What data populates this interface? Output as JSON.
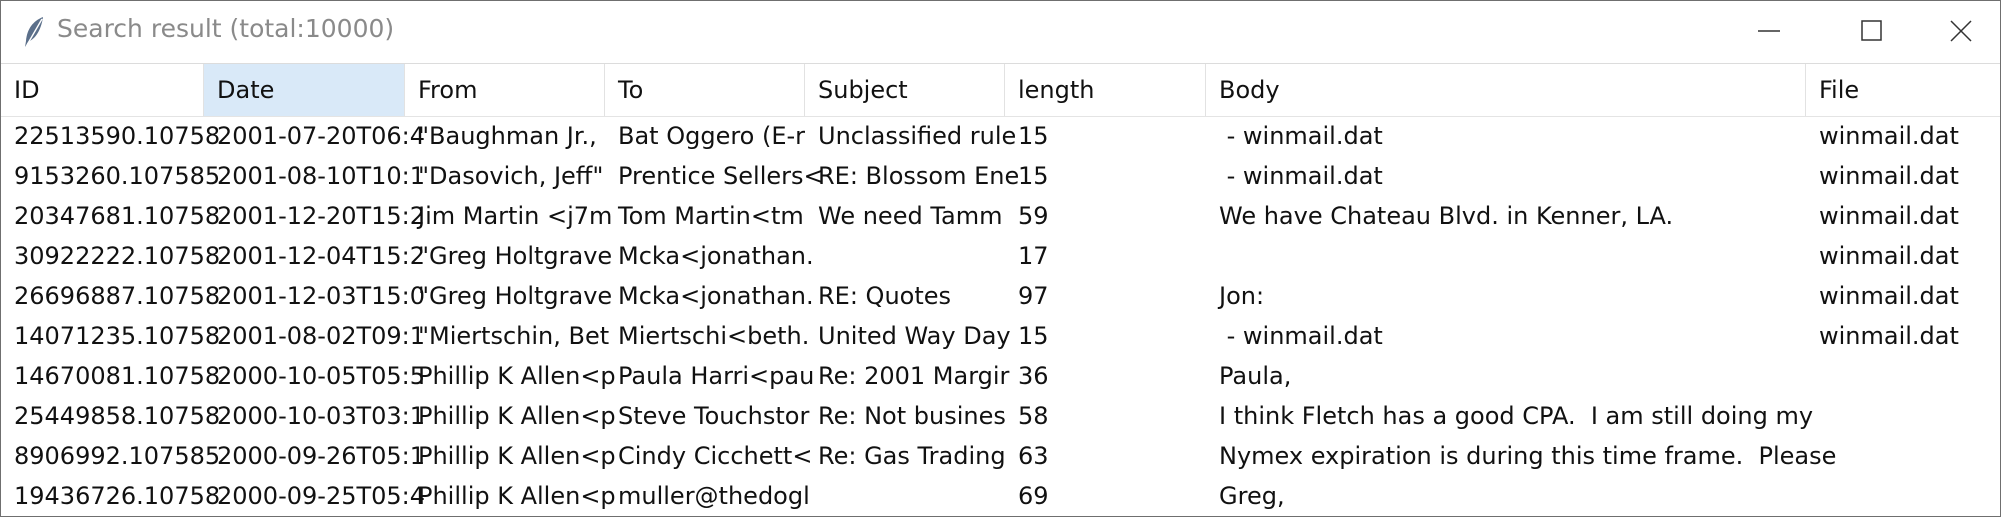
{
  "window": {
    "title": "Search result (total:10000)",
    "icon": "feather-icon",
    "controls": {
      "minimize": "minimize-icon",
      "maximize": "maximize-icon",
      "close": "close-icon"
    }
  },
  "table": {
    "columns": [
      "ID",
      "Date",
      "From",
      "To",
      "Subject",
      "length",
      "Body",
      "File"
    ],
    "sorted_column": "Date",
    "rows": [
      {
        "id": "22513590.10758",
        "date": "2001-07-20T06:4",
        "from": "\"Baughman Jr.,",
        "to": "Bat Oggero (E-r",
        "subject": "Unclassified rule",
        "length": "15",
        "body": " - winmail.dat",
        "file": "winmail.dat"
      },
      {
        "id": "9153260.107585",
        "date": "2001-08-10T10:1",
        "from": "\"Dasovich, Jeff\"",
        "to": "Prentice Sellers<",
        "subject": "RE: Blossom Ene",
        "length": "15",
        "body": " - winmail.dat",
        "file": "winmail.dat"
      },
      {
        "id": "20347681.10758",
        "date": "2001-12-20T15:2",
        "from": "Jim Martin <j7m",
        "to": "Tom Martin<tm",
        "subject": "We need Tamm",
        "length": "59",
        "body": "We have Chateau Blvd. in Kenner, LA.",
        "file": "winmail.dat"
      },
      {
        "id": "30922222.10758",
        "date": "2001-12-04T15:2",
        "from": "\"Greg Holtgrave",
        "to": "Mcka<jonathan.",
        "subject": "",
        "length": "17",
        "body": "",
        "file": "winmail.dat"
      },
      {
        "id": "26696887.10758",
        "date": "2001-12-03T15:0",
        "from": "\"Greg Holtgrave",
        "to": "Mcka<jonathan.",
        "subject": "RE: Quotes",
        "length": "97",
        "body": "Jon:",
        "file": "winmail.dat"
      },
      {
        "id": "14071235.10758",
        "date": "2001-08-02T09:1",
        "from": "\"Miertschin, Bet",
        "to": "Miertschi<beth.",
        "subject": "United Way Day",
        "length": "15",
        "body": " - winmail.dat",
        "file": "winmail.dat"
      },
      {
        "id": "14670081.10758",
        "date": "2000-10-05T05:5",
        "from": "Phillip K Allen<p",
        "to": "Paula Harri<pau",
        "subject": "Re: 2001 Margir",
        "length": "36",
        "body": "Paula,",
        "file": ""
      },
      {
        "id": "25449858.10758",
        "date": "2000-10-03T03:1",
        "from": "Phillip K Allen<p",
        "to": "Steve Touchstor",
        "subject": "Re: Not busines",
        "length": "58",
        "body": "I think Fletch has a good CPA.  I am still doing my",
        "file": ""
      },
      {
        "id": "8906992.107585",
        "date": "2000-09-26T05:1",
        "from": "Phillip K Allen<p",
        "to": "Cindy Cicchett<",
        "subject": "Re: Gas Trading",
        "length": "63",
        "body": "Nymex expiration is during this time frame.  Please",
        "file": ""
      },
      {
        "id": "19436726.10758",
        "date": "2000-09-25T05:4",
        "from": "Phillip K Allen<p",
        "to": "muller@thedogl",
        "subject": "",
        "length": "69",
        "body": "Greg,",
        "file": ""
      }
    ]
  }
}
